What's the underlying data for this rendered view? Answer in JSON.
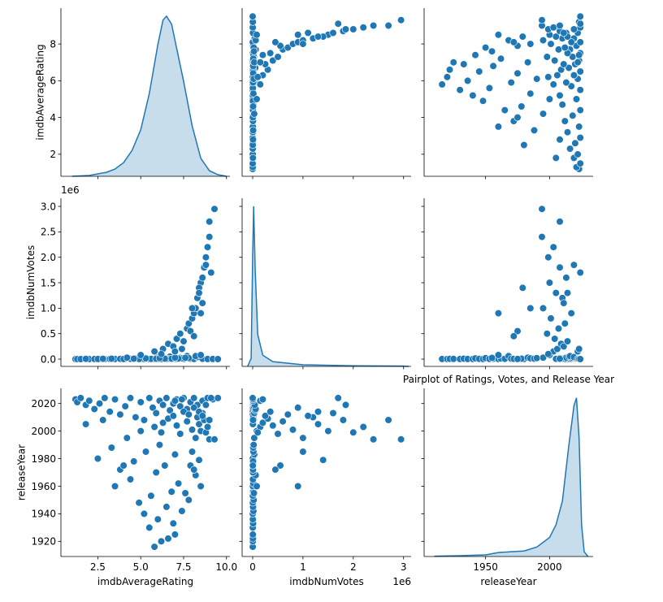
{
  "chart_data": {
    "type": "pairplot",
    "title": "Pairplot of Ratings, Votes, and Release Year",
    "color": "#1f77b4",
    "variables": [
      {
        "label": "imdbAverageRating",
        "xlim": [
          0.35,
          10.2
        ],
        "xticks": [
          2.5,
          {
            "value": 5,
            "label": "5.0"
          },
          7.5,
          {
            "value": 10,
            "label": "10.0"
          }
        ],
        "ylim": [
          0.8,
          9.95
        ],
        "yticks": [
          2,
          4,
          6,
          8
        ],
        "values": [
          1.2,
          1.3,
          1.5,
          1.8,
          2.0,
          2.3,
          2.6,
          2.9,
          3.2,
          3.5,
          3.8,
          4.1,
          4.4,
          4.7,
          5.0,
          5.2,
          5.5,
          5.7,
          5.9,
          6.1,
          6.3,
          6.5,
          6.7,
          6.9,
          7.1,
          7.3,
          7.5,
          7.7,
          7.9,
          8.1,
          8.3,
          8.6,
          8.9,
          9.2,
          9.5,
          5.8,
          6.2,
          6.6,
          7.0,
          5.5,
          6.9,
          6.0,
          5.2,
          7.4,
          6.5,
          4.9,
          7.8,
          5.6,
          6.8,
          3.5,
          7.2,
          4.4,
          8.2,
          5.9,
          3.8,
          6.4,
          2.5,
          4.6,
          7.0,
          5.3,
          3.3,
          6.1,
          8.5,
          4.0,
          7.6,
          1.8,
          2.8,
          4.2,
          5.0,
          5.8,
          6.3,
          6.6,
          6.9,
          7.1,
          7.3,
          7.5,
          7.7,
          7.8,
          8.0,
          8.1,
          8.2,
          8.3,
          8.4,
          8.5,
          8.6,
          8.7,
          8.8,
          8.9,
          9.0,
          9.0,
          9.3,
          8.8,
          8.0,
          8.4,
          7.9,
          8.1,
          8.5,
          6.2,
          7.0,
          7.4,
          8.4,
          8.6,
          9.1
        ],
        "kde": {
          "x": [
            1,
            2,
            2.5,
            3,
            3.5,
            4,
            4.5,
            5,
            5.5,
            6,
            6.3,
            6.5,
            6.8,
            7,
            7.5,
            8,
            8.5,
            9,
            9.5,
            10
          ],
          "values": [
            0,
            0.002,
            0.006,
            0.01,
            0.018,
            0.034,
            0.065,
            0.116,
            0.207,
            0.329,
            0.39,
            0.4,
            0.38,
            0.339,
            0.237,
            0.126,
            0.045,
            0.014,
            0.004,
            0
          ],
          "ylim": [
            0,
            0.42
          ]
        }
      },
      {
        "label": "imdbNumVotes",
        "offset": "1e6",
        "xlim": [
          -210000,
          3150000
        ],
        "xticks": [
          0,
          {
            "value": 1000000,
            "label": "1"
          },
          {
            "value": 2000000,
            "label": "2"
          },
          {
            "value": 3000000,
            "label": "3"
          }
        ],
        "ylim": [
          -143000,
          3160000
        ],
        "yticks": [
          {
            "value": 0,
            "label": "0.0"
          },
          {
            "value": 500000,
            "label": "0.5"
          },
          {
            "value": 1000000,
            "label": "1.0"
          },
          {
            "value": 1500000,
            "label": "1.5"
          },
          {
            "value": 2000000,
            "label": "2.0"
          },
          {
            "value": 2500000,
            "label": "2.5"
          },
          {
            "value": 3000000,
            "label": "3.0"
          }
        ],
        "values": [
          800,
          1200,
          500,
          2000,
          900,
          1500,
          3000,
          700,
          4000,
          1100,
          2500,
          6000,
          900,
          12000,
          3000,
          20000,
          1500,
          8000,
          30000,
          2000,
          15000,
          4000,
          50000,
          7000,
          1000,
          25000,
          3000,
          60000,
          9000,
          2000,
          40000,
          5000,
          1500,
          3000,
          800,
          2000,
          3000,
          5000,
          4000,
          1500,
          8000,
          3000,
          2000,
          15000,
          6000,
          2500,
          20000,
          4000,
          9000,
          3000,
          12000,
          5000,
          60000,
          7000,
          6000,
          10000,
          2000,
          8000,
          30000,
          15000,
          9000,
          20000,
          80000,
          3000,
          25000,
          5000,
          7000,
          30000,
          80000,
          150000,
          200000,
          300000,
          250000,
          400000,
          500000,
          350000,
          600000,
          700000,
          800000,
          900000,
          1000000,
          1200000,
          1300000,
          1500000,
          1600000,
          1800000,
          2000000,
          2200000,
          2400000,
          2700000,
          2950000,
          1850000,
          1000000,
          1400000,
          550000,
          450000,
          900000,
          100000,
          150000,
          200000,
          1300000,
          1100000,
          1700000
        ],
        "kde": {
          "x": [
            -100000,
            -30000,
            0,
            20000,
            50000,
            100000,
            200000,
            400000,
            1000000,
            2000000,
            3000000,
            3100000
          ],
          "values": [
            0,
            0.05,
            0.7,
            1.0,
            0.6,
            0.2,
            0.07,
            0.03,
            0.01,
            0.004,
            0.002,
            0
          ],
          "ylim": [
            0,
            1.05
          ]
        }
      },
      {
        "label": "releaseYear",
        "xlim": [
          1902,
          2034
        ],
        "xticks": [
          1950,
          2000
        ],
        "ylim": [
          1909,
          2031
        ],
        "yticks": [
          1920,
          1940,
          1960,
          1980,
          2000,
          2020
        ],
        "values": [
          2023,
          2021,
          2024,
          2019,
          2022,
          2016,
          2020,
          2024,
          2014,
          2023,
          2012,
          2018,
          2024,
          2010,
          2021,
          2008,
          2024,
          2017,
          2013,
          2022,
          2019,
          2024,
          2015,
          2020,
          2023,
          2018,
          2024,
          2016,
          2021,
          2024,
          2019,
          2022,
          2024,
          2023,
          2024,
          1916,
          1920,
          1922,
          1925,
          1930,
          1933,
          1936,
          1940,
          1942,
          1945,
          1948,
          1950,
          1953,
          1956,
          1960,
          1962,
          1965,
          1968,
          1970,
          1972,
          1975,
          1980,
          1978,
          1983,
          1985,
          1988,
          1990,
          1960,
          1975,
          1955,
          2005,
          2008,
          1995,
          2000,
          2003,
          2006,
          2009,
          2011,
          2004,
          1998,
          2014,
          2007,
          2012,
          2001,
          2017,
          1995,
          2010,
          2005,
          2000,
          2013,
          2008,
          1999,
          2003,
          1994,
          2008,
          1994,
          2019,
          1985,
          1979,
          1975,
          1972,
          1960,
          1999,
          2022,
          2023,
          2014,
          2011,
          2024
        ],
        "kde": {
          "x": [
            1910,
            1930,
            1950,
            1960,
            1970,
            1980,
            1990,
            2000,
            2005,
            2010,
            2015,
            2019,
            2021,
            2023,
            2025,
            2027,
            2030
          ],
          "values": [
            0.002,
            0.005,
            0.01,
            0.025,
            0.03,
            0.035,
            0.06,
            0.12,
            0.2,
            0.35,
            0.7,
            0.95,
            1.0,
            0.75,
            0.2,
            0.03,
            0
          ],
          "ylim": [
            0,
            1.06
          ]
        }
      }
    ]
  }
}
